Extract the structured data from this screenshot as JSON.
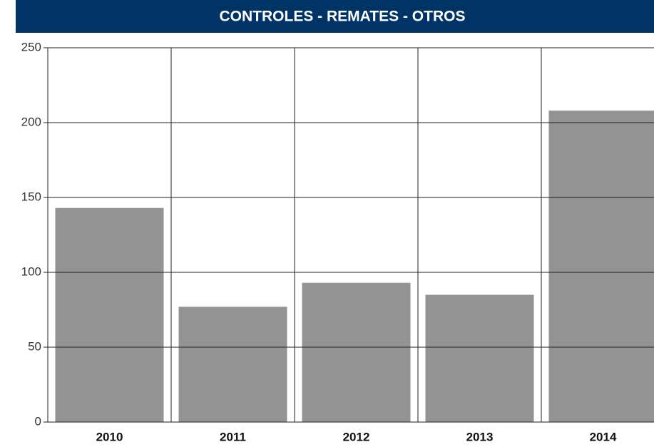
{
  "chart_data": {
    "type": "bar",
    "title": "CONTROLES - REMATES - OTROS",
    "categories": [
      "2010",
      "2011",
      "2012",
      "2013",
      "2014"
    ],
    "values": [
      143,
      77,
      93,
      85,
      208
    ],
    "color": "#939393",
    "ylim": [
      0,
      250
    ],
    "yticks": [
      0,
      50,
      100,
      150,
      200,
      250
    ],
    "grid": true
  }
}
